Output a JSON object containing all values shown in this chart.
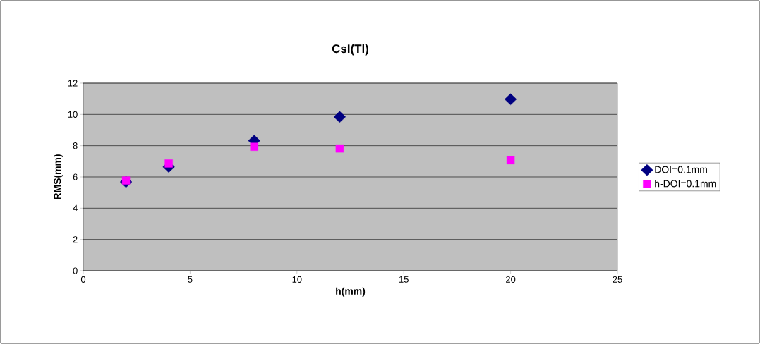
{
  "chart_data": {
    "type": "scatter",
    "title": "CsI(Tl)",
    "xlabel": "h(mm)",
    "ylabel": "RMS(mm)",
    "x": [
      2,
      4,
      8,
      12,
      20
    ],
    "series": [
      {
        "name": "DOI=0.1mm",
        "color": "#000080",
        "marker": "diamond",
        "values": [
          5.68,
          6.64,
          8.32,
          9.84,
          10.97
        ]
      },
      {
        "name": "h-DOI=0.1mm",
        "color": "#ff00ff",
        "marker": "square",
        "values": [
          5.77,
          6.86,
          7.93,
          7.82,
          7.07
        ]
      }
    ],
    "xlim": [
      0,
      25
    ],
    "xticks": [
      0,
      5,
      10,
      15,
      20,
      25
    ],
    "ylim": [
      0,
      12
    ],
    "yticks": [
      0,
      2,
      4,
      6,
      8,
      10,
      12
    ],
    "grid": "y",
    "legend": "right"
  }
}
